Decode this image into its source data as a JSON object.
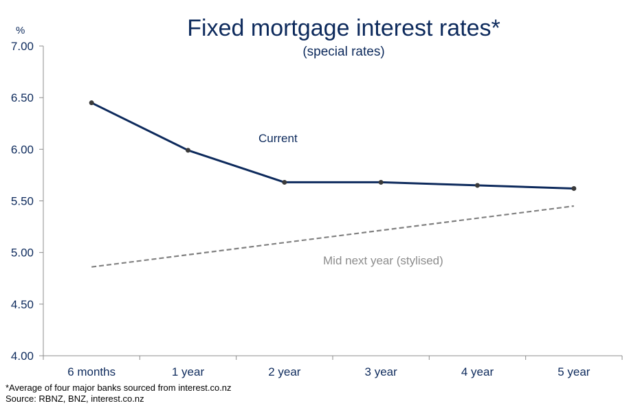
{
  "chart_data": {
    "type": "line",
    "title": "Fixed mortgage interest rates*",
    "subtitle": "(special rates)",
    "ylabel": "%",
    "xlabel": "",
    "categories": [
      "6 months",
      "1 year",
      "2 year",
      "3 year",
      "4 year",
      "5 year"
    ],
    "ylim": [
      4.0,
      7.0
    ],
    "yticks": [
      "4.00",
      "4.50",
      "5.00",
      "5.50",
      "6.00",
      "6.50",
      "7.00"
    ],
    "grid": false,
    "legend": "none",
    "series": [
      {
        "name": "Current",
        "style": "solid",
        "color": "#0d2a5c",
        "values": [
          6.45,
          5.99,
          5.68,
          5.68,
          5.65,
          5.62
        ]
      },
      {
        "name": "Mid next year (stylised)",
        "style": "dashed",
        "color": "#808080",
        "values": [
          4.86,
          null,
          null,
          null,
          null,
          5.45
        ]
      }
    ]
  },
  "footnotes": [
    "*Average of four major banks sourced from interest.co.nz",
    "Source: RBNZ, BNZ, interest.co.nz"
  ]
}
